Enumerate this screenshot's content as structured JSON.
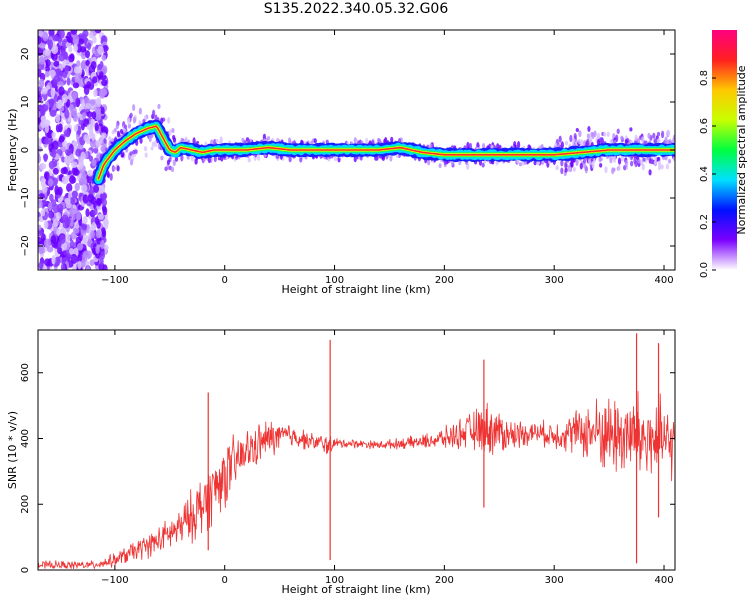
{
  "page": {
    "title": "S135.2022.340.05.32.G06"
  },
  "chart_data": [
    {
      "type": "heatmap",
      "title": "S135.2022.340.05.32.G06",
      "xlabel": "Height of straight line (km)",
      "ylabel": "Frequency (Hz)",
      "xlim": [
        -170,
        410
      ],
      "ylim": [
        -25,
        25
      ],
      "x_ticks": [
        -100,
        0,
        100,
        200,
        300,
        400
      ],
      "y_ticks": [
        -20,
        -10,
        0,
        10,
        20
      ],
      "colorbar": {
        "label": "Normalized spectral amplitude",
        "range": [
          0,
          1
        ],
        "ticks": [
          0.0,
          0.2,
          0.4,
          0.6,
          0.8
        ],
        "colormap": [
          "#ffffff",
          "#7b00ff",
          "#0010ff",
          "#00e0ff",
          "#00ff40",
          "#c8ff00",
          "#ffc800",
          "#ff2020",
          "#ff0080"
        ]
      },
      "ridge_frequency_hz": {
        "x": [
          -115,
          -110,
          -100,
          -90,
          -80,
          -70,
          -62,
          -55,
          -50,
          -45,
          -40,
          -30,
          -20,
          -10,
          0,
          20,
          40,
          60,
          100,
          140,
          160,
          170,
          180,
          200,
          250,
          300,
          350,
          400
        ],
        "y": [
          -6,
          -3,
          0,
          2,
          3.5,
          4.5,
          5,
          2,
          0,
          -0.5,
          0.5,
          0,
          -0.5,
          0,
          0,
          0,
          0.5,
          0,
          0,
          0,
          0.5,
          0,
          -0.5,
          -1,
          -1,
          -1,
          0,
          0
        ]
      },
      "grid": false,
      "legend": "none"
    },
    {
      "type": "line",
      "xlabel": "Height of straight line (km)",
      "ylabel": "SNR (10 * v/v)",
      "xlim": [
        -170,
        410
      ],
      "ylim": [
        0,
        730
      ],
      "x_ticks": [
        -100,
        0,
        100,
        200,
        300,
        400
      ],
      "y_ticks": [
        0,
        200,
        400,
        600
      ],
      "series": [
        {
          "color": "#ee3333",
          "envelope": {
            "x": [
              -170,
              -120,
              -100,
              -80,
              -60,
              -40,
              -20,
              0,
              20,
              40,
              60,
              80,
              95,
              100,
              120,
              140,
              160,
              180,
              200,
              220,
              240,
              260,
              280,
              300,
              320,
              340,
              360,
              380,
              400,
              410
            ],
            "center": [
              15,
              15,
              30,
              60,
              90,
              130,
              200,
              290,
              360,
              400,
              410,
              390,
              380,
              385,
              385,
              380,
              385,
              390,
              400,
              420,
              430,
              410,
              420,
              410,
              420,
              420,
              410,
              400,
              390,
              380
            ],
            "spread": [
              15,
              15,
              25,
              40,
              50,
              70,
              120,
              120,
              80,
              70,
              45,
              30,
              40,
              20,
              15,
              15,
              20,
              25,
              40,
              60,
              100,
              60,
              40,
              50,
              80,
              130,
              160,
              170,
              150,
              120
            ]
          },
          "spikes": [
            {
              "x": 96,
              "low": 30,
              "high": 700
            },
            {
              "x": -15,
              "low": 60,
              "high": 540
            },
            {
              "x": 236,
              "low": 190,
              "high": 640
            },
            {
              "x": 375,
              "low": 20,
              "high": 720
            },
            {
              "x": 395,
              "low": 160,
              "high": 690
            }
          ]
        }
      ],
      "grid": false,
      "legend": "none"
    }
  ]
}
